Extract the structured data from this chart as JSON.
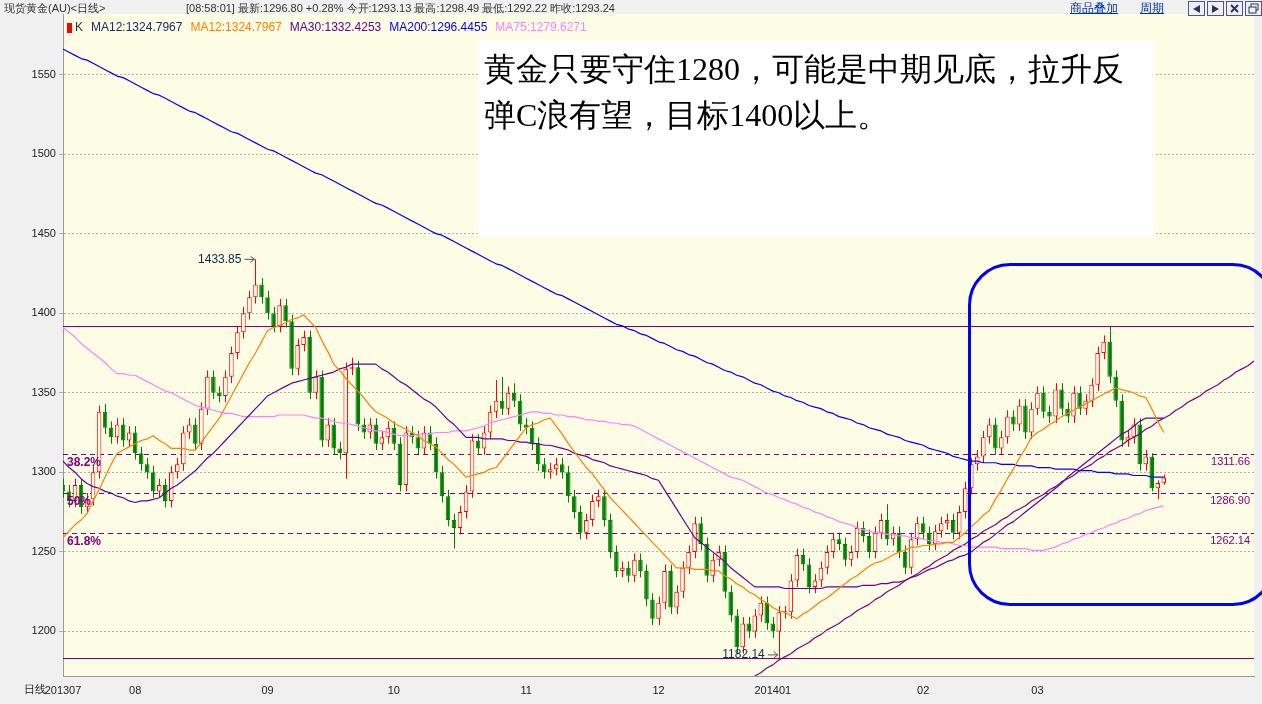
{
  "chart_data": {
    "type": "candlestick",
    "title": "现货黄金(AU)<日线>",
    "subtitle": "[08:58:01] 最新:1296.80 +0.28% 今开:1293.13 最高:1298.49 最低:1292.22 昨收:1293.24",
    "categories": [
      "201307",
      null,
      null,
      null,
      null,
      null,
      null,
      null,
      null,
      null,
      null,
      null,
      "08",
      null,
      null,
      null,
      null,
      null,
      null,
      null,
      null,
      null,
      null,
      null,
      null,
      null,
      null,
      null,
      null,
      null,
      null,
      null,
      null,
      null,
      "09",
      null,
      null,
      null,
      null,
      null,
      null,
      null,
      null,
      null,
      null,
      null,
      null,
      null,
      null,
      null,
      null,
      null,
      null,
      null,
      null,
      "10",
      null,
      null,
      null,
      null,
      null,
      null,
      null,
      null,
      null,
      null,
      null,
      null,
      null,
      null,
      null,
      null,
      null,
      null,
      null,
      null,
      null,
      "11",
      null,
      null,
      null,
      null,
      null,
      null,
      null,
      null,
      null,
      null,
      null,
      null,
      null,
      null,
      null,
      null,
      null,
      null,
      null,
      null,
      null,
      "12",
      null,
      null,
      null,
      null,
      null,
      null,
      null,
      null,
      null,
      null,
      null,
      null,
      null,
      null,
      null,
      null,
      null,
      null,
      "201401",
      null,
      null,
      null,
      null,
      null,
      null,
      null,
      null,
      null,
      null,
      null,
      null,
      null,
      null,
      null,
      null,
      null,
      null,
      null,
      null,
      null,
      null,
      null,
      null,
      "02",
      null,
      null,
      null,
      null,
      null,
      null,
      null,
      null,
      null,
      null,
      null,
      null,
      null,
      null,
      null,
      null,
      null,
      null,
      "03",
      null,
      null,
      null,
      null,
      null,
      null,
      null,
      null,
      null,
      null,
      null,
      null,
      null,
      null,
      null,
      null,
      null,
      null,
      null,
      null,
      null,
      null,
      null,
      null,
      null,
      null,
      null,
      null,
      null,
      null,
      null,
      null,
      null,
      null,
      null,
      null
    ],
    "series": [
      {
        "name": "K",
        "type": "candlestick",
        "ohlc": [
          [
            1292,
            1296,
            1284,
            1288
          ],
          [
            1288,
            1292,
            1278,
            1282
          ],
          [
            1282,
            1296,
            1278,
            1292
          ],
          [
            1292,
            1296,
            1274,
            1278
          ],
          [
            1278,
            1287,
            1274,
            1283
          ],
          [
            1283,
            1304,
            1279,
            1300
          ],
          [
            1300,
            1342,
            1296,
            1338
          ],
          [
            1338,
            1343,
            1324,
            1328
          ],
          [
            1328,
            1332,
            1318,
            1322
          ],
          [
            1322,
            1334,
            1318,
            1330
          ],
          [
            1330,
            1334,
            1316,
            1320
          ],
          [
            1320,
            1329,
            1316,
            1325
          ],
          [
            1325,
            1329,
            1308,
            1312
          ],
          [
            1312,
            1316,
            1301,
            1305
          ],
          [
            1305,
            1309,
            1296,
            1300
          ],
          [
            1300,
            1304,
            1284,
            1288
          ],
          [
            1288,
            1296,
            1284,
            1292
          ],
          [
            1292,
            1296,
            1278,
            1282
          ],
          [
            1282,
            1304,
            1278,
            1300
          ],
          [
            1300,
            1309,
            1296,
            1305
          ],
          [
            1305,
            1329,
            1301,
            1325
          ],
          [
            1325,
            1334,
            1321,
            1330
          ],
          [
            1330,
            1334,
            1314,
            1318
          ],
          [
            1318,
            1344,
            1314,
            1340
          ],
          [
            1340,
            1364,
            1336,
            1360
          ],
          [
            1360,
            1364,
            1346,
            1350
          ],
          [
            1350,
            1354,
            1344,
            1348
          ],
          [
            1348,
            1364,
            1344,
            1360
          ],
          [
            1360,
            1379,
            1356,
            1375
          ],
          [
            1375,
            1392,
            1371,
            1388
          ],
          [
            1388,
            1404,
            1384,
            1400
          ],
          [
            1400,
            1414,
            1396,
            1410
          ],
          [
            1410,
            1433.85,
            1406,
            1418
          ],
          [
            1418,
            1422,
            1406,
            1410
          ],
          [
            1410,
            1414,
            1396,
            1400
          ],
          [
            1400,
            1404,
            1388,
            1392
          ],
          [
            1392,
            1409,
            1388,
            1405
          ],
          [
            1405,
            1409,
            1391,
            1395
          ],
          [
            1395,
            1399,
            1361,
            1365
          ],
          [
            1365,
            1384,
            1361,
            1380
          ],
          [
            1380,
            1389,
            1376,
            1385
          ],
          [
            1385,
            1389,
            1346,
            1350
          ],
          [
            1350,
            1364,
            1346,
            1360
          ],
          [
            1360,
            1364,
            1316,
            1320
          ],
          [
            1320,
            1334,
            1316,
            1330
          ],
          [
            1330,
            1334,
            1311,
            1315
          ],
          [
            1315,
            1319,
            1308,
            1312
          ],
          [
            1312,
            1369,
            1296,
            1365
          ],
          [
            1365,
            1372,
            1361,
            1366
          ],
          [
            1366,
            1370,
            1326,
            1330
          ],
          [
            1330,
            1334,
            1321,
            1325
          ],
          [
            1325,
            1334,
            1321,
            1330
          ],
          [
            1330,
            1334,
            1314,
            1318
          ],
          [
            1318,
            1326,
            1314,
            1322
          ],
          [
            1322,
            1332,
            1318,
            1328
          ],
          [
            1328,
            1332,
            1314,
            1318
          ],
          [
            1318,
            1322,
            1288,
            1292
          ],
          [
            1292,
            1329,
            1288,
            1325
          ],
          [
            1325,
            1329,
            1318,
            1322
          ],
          [
            1322,
            1326,
            1311,
            1315
          ],
          [
            1315,
            1329,
            1311,
            1325
          ],
          [
            1325,
            1329,
            1314,
            1318
          ],
          [
            1318,
            1322,
            1296,
            1300
          ],
          [
            1300,
            1304,
            1281,
            1285
          ],
          [
            1285,
            1289,
            1266,
            1270
          ],
          [
            1270,
            1274,
            1252,
            1265
          ],
          [
            1265,
            1279,
            1261,
            1275
          ],
          [
            1275,
            1292,
            1271,
            1288
          ],
          [
            1288,
            1324,
            1284,
            1320
          ],
          [
            1320,
            1324,
            1311,
            1315
          ],
          [
            1315,
            1329,
            1311,
            1325
          ],
          [
            1325,
            1342,
            1321,
            1338
          ],
          [
            1338,
            1358,
            1334,
            1345
          ],
          [
            1345,
            1360,
            1336,
            1340
          ],
          [
            1340,
            1354,
            1336,
            1350
          ],
          [
            1350,
            1356,
            1341,
            1345
          ],
          [
            1345,
            1349,
            1326,
            1330
          ],
          [
            1330,
            1334,
            1324,
            1328
          ],
          [
            1328,
            1332,
            1314,
            1318
          ],
          [
            1318,
            1322,
            1301,
            1305
          ],
          [
            1305,
            1309,
            1296,
            1300
          ],
          [
            1300,
            1306,
            1296,
            1302
          ],
          [
            1302,
            1309,
            1298,
            1305
          ],
          [
            1305,
            1309,
            1296,
            1300
          ],
          [
            1300,
            1304,
            1281,
            1285
          ],
          [
            1285,
            1289,
            1271,
            1275
          ],
          [
            1275,
            1279,
            1258,
            1262
          ],
          [
            1262,
            1274,
            1258,
            1270
          ],
          [
            1270,
            1286,
            1266,
            1282
          ],
          [
            1282,
            1289,
            1278,
            1285
          ],
          [
            1285,
            1289,
            1266,
            1270
          ],
          [
            1270,
            1274,
            1246,
            1250
          ],
          [
            1250,
            1254,
            1234,
            1238
          ],
          [
            1238,
            1244,
            1234,
            1240
          ],
          [
            1240,
            1244,
            1231,
            1235
          ],
          [
            1235,
            1249,
            1231,
            1245
          ],
          [
            1245,
            1249,
            1234,
            1238
          ],
          [
            1238,
            1242,
            1216,
            1220
          ],
          [
            1220,
            1224,
            1204,
            1208
          ],
          [
            1208,
            1222,
            1204,
            1218
          ],
          [
            1218,
            1242,
            1214,
            1238
          ],
          [
            1238,
            1242,
            1211,
            1215
          ],
          [
            1215,
            1229,
            1211,
            1225
          ],
          [
            1225,
            1244,
            1221,
            1240
          ],
          [
            1240,
            1254,
            1236,
            1250
          ],
          [
            1250,
            1272,
            1246,
            1268
          ],
          [
            1268,
            1272,
            1251,
            1255
          ],
          [
            1255,
            1259,
            1231,
            1235
          ],
          [
            1235,
            1249,
            1231,
            1245
          ],
          [
            1245,
            1254,
            1241,
            1250
          ],
          [
            1250,
            1254,
            1221,
            1225
          ],
          [
            1225,
            1229,
            1206,
            1210
          ],
          [
            1210,
            1214,
            1186,
            1190
          ],
          [
            1190,
            1209,
            1186,
            1205
          ],
          [
            1205,
            1209,
            1196,
            1200
          ],
          [
            1200,
            1214,
            1196,
            1210
          ],
          [
            1210,
            1222,
            1206,
            1218
          ],
          [
            1218,
            1222,
            1201,
            1205
          ],
          [
            1205,
            1209,
            1196,
            1200
          ],
          [
            1200,
            1216,
            1182.14,
            1212
          ],
          [
            1212,
            1216,
            1208,
            1212
          ],
          [
            1212,
            1236,
            1208,
            1232
          ],
          [
            1232,
            1252,
            1228,
            1248
          ],
          [
            1248,
            1252,
            1238,
            1242
          ],
          [
            1242,
            1246,
            1224,
            1228
          ],
          [
            1228,
            1236,
            1224,
            1232
          ],
          [
            1232,
            1244,
            1228,
            1240
          ],
          [
            1240,
            1254,
            1236,
            1250
          ],
          [
            1250,
            1262,
            1246,
            1258
          ],
          [
            1258,
            1262,
            1251,
            1255
          ],
          [
            1255,
            1259,
            1241,
            1245
          ],
          [
            1245,
            1254,
            1241,
            1250
          ],
          [
            1250,
            1269,
            1246,
            1265
          ],
          [
            1265,
            1269,
            1256,
            1260
          ],
          [
            1260,
            1264,
            1246,
            1250
          ],
          [
            1250,
            1266,
            1246,
            1262
          ],
          [
            1262,
            1274,
            1258,
            1270
          ],
          [
            1270,
            1280,
            1254,
            1258
          ],
          [
            1258,
            1266,
            1254,
            1262
          ],
          [
            1262,
            1266,
            1246,
            1250
          ],
          [
            1250,
            1254,
            1236,
            1240
          ],
          [
            1240,
            1262,
            1236,
            1258
          ],
          [
            1258,
            1272,
            1254,
            1268
          ],
          [
            1268,
            1272,
            1258,
            1262
          ],
          [
            1262,
            1266,
            1251,
            1255
          ],
          [
            1255,
            1267,
            1251,
            1263
          ],
          [
            1263,
            1272,
            1259,
            1268
          ],
          [
            1268,
            1274,
            1264,
            1270
          ],
          [
            1270,
            1274,
            1258,
            1262
          ],
          [
            1262,
            1279,
            1258,
            1275
          ],
          [
            1275,
            1294,
            1271,
            1290
          ],
          [
            1290,
            1309,
            1286,
            1305
          ],
          [
            1305,
            1314,
            1301,
            1310
          ],
          [
            1310,
            1326,
            1306,
            1322
          ],
          [
            1322,
            1334,
            1318,
            1330
          ],
          [
            1330,
            1334,
            1311,
            1315
          ],
          [
            1315,
            1326,
            1311,
            1322
          ],
          [
            1322,
            1339,
            1318,
            1335
          ],
          [
            1335,
            1339,
            1326,
            1330
          ],
          [
            1330,
            1346,
            1326,
            1342
          ],
          [
            1342,
            1346,
            1321,
            1325
          ],
          [
            1325,
            1344,
            1321,
            1340
          ],
          [
            1340,
            1354,
            1336,
            1350
          ],
          [
            1350,
            1354,
            1334,
            1338
          ],
          [
            1338,
            1342,
            1331,
            1335
          ],
          [
            1335,
            1356,
            1331,
            1352
          ],
          [
            1352,
            1356,
            1336,
            1340
          ],
          [
            1340,
            1344,
            1331,
            1335
          ],
          [
            1335,
            1354,
            1331,
            1350
          ],
          [
            1350,
            1354,
            1336,
            1340
          ],
          [
            1340,
            1349,
            1336,
            1345
          ],
          [
            1345,
            1359,
            1341,
            1355
          ],
          [
            1355,
            1379,
            1351,
            1375
          ],
          [
            1375,
            1386,
            1371,
            1382
          ],
          [
            1382,
            1392,
            1356,
            1360
          ],
          [
            1360,
            1364,
            1341,
            1345
          ],
          [
            1345,
            1349,
            1316,
            1320
          ],
          [
            1320,
            1326,
            1316,
            1322
          ],
          [
            1322,
            1334,
            1318,
            1330
          ],
          [
            1330,
            1334,
            1301,
            1305
          ],
          [
            1305,
            1314,
            1301,
            1310
          ],
          [
            1310,
            1312,
            1288,
            1290
          ],
          [
            1290,
            1295,
            1283,
            1293.24
          ],
          [
            1293.13,
            1298.49,
            1292.22,
            1296.8
          ],
          null,
          null,
          null,
          null,
          null,
          null,
          null,
          null,
          null,
          null,
          null,
          null,
          null,
          null,
          null
        ]
      },
      {
        "name": "MA12:1324.7967",
        "type": "line",
        "color": "#ff8000",
        "values": [
          1259,
          1263,
          1267,
          1270,
          1274,
          1282,
          1289,
          1297,
          1305,
          1312,
          1314,
          1316,
          1318,
          1320,
          1321,
          1323,
          1320,
          1318,
          1315,
          1315,
          1315,
          1314,
          1314,
          1319,
          1324,
          1329,
          1334,
          1341,
          1348,
          1355,
          1362,
          1369,
          1375,
          1382,
          1389,
          1391,
          1392,
          1394,
          1396,
          1397,
          1399,
          1395,
          1391,
          1383,
          1376,
          1368,
          1364,
          1359,
          1355,
          1351,
          1347,
          1342,
          1338,
          1336,
          1334,
          1331,
          1329,
          1327,
          1325,
          1323,
          1320,
          1318,
          1316,
          1312,
          1308,
          1305,
          1301,
          1297,
          1298,
          1299,
          1300,
          1302,
          1303,
          1308,
          1313,
          1318,
          1323,
          1328,
          1330,
          1331,
          1333,
          1334,
          1329,
          1324,
          1318,
          1313,
          1308,
          1303,
          1299,
          1294,
          1289,
          1284,
          1280,
          1276,
          1272,
          1268,
          1264,
          1260,
          1256,
          1252,
          1248,
          1244,
          1240,
          1240,
          1240,
          1239,
          1239,
          1239,
          1238,
          1238,
          1235,
          1233,
          1230,
          1228,
          1225,
          1223,
          1220,
          1218,
          1215,
          1213,
          1212,
          1210,
          1208,
          1211,
          1213,
          1216,
          1219,
          1221,
          1224,
          1227,
          1230,
          1233,
          1235,
          1238,
          1241,
          1243,
          1244,
          1246,
          1248,
          1250,
          1251,
          1253,
          1253,
          1254,
          1254,
          1255,
          1255,
          1256,
          1256,
          1259,
          1262,
          1266,
          1269,
          1273,
          1276,
          1283,
          1289,
          1296,
          1302,
          1309,
          1315,
          1322,
          1325,
          1327,
          1330,
          1332,
          1335,
          1337,
          1339,
          1341,
          1343,
          1345,
          1347,
          1349,
          1351,
          1353,
          1352,
          1351,
          1350,
          1348,
          1347,
          1340,
          1332,
          1325,
          null,
          null,
          null,
          null,
          null,
          null,
          null,
          null,
          null,
          null,
          null,
          null,
          null,
          null,
          null
        ]
      },
      {
        "name": "MA30:1332.4253",
        "type": "line",
        "color": "#660099",
        "values": [
          1307,
          1303,
          1300,
          1296,
          1293,
          1291,
          1290,
          1288,
          1287,
          1285,
          1284,
          1282,
          1281,
          1282,
          1282,
          1283,
          1284,
          1287,
          1290,
          1292,
          1295,
          1298,
          1301,
          1305,
          1309,
          1312,
          1316,
          1320,
          1324,
          1328,
          1332,
          1336,
          1340,
          1344,
          1348,
          1350,
          1352,
          1354,
          1356,
          1357,
          1358,
          1359,
          1360,
          1361,
          1362,
          1363,
          1365,
          1366,
          1368,
          1368,
          1368,
          1368,
          1368,
          1365,
          1363,
          1360,
          1357,
          1355,
          1352,
          1349,
          1346,
          1344,
          1341,
          1337,
          1333,
          1330,
          1326,
          1322,
          1322,
          1322,
          1321,
          1321,
          1321,
          1321,
          1320,
          1320,
          1319,
          1319,
          1318,
          1318,
          1317,
          1317,
          1316,
          1315,
          1314,
          1312,
          1311,
          1310,
          1308,
          1307,
          1306,
          1304,
          1303,
          1302,
          1301,
          1300,
          1299,
          1298,
          1296,
          1295,
          1289,
          1283,
          1277,
          1271,
          1265,
          1259,
          1256,
          1253,
          1250,
          1247,
          1244,
          1240,
          1237,
          1234,
          1231,
          1228,
          1228,
          1228,
          1228,
          1228,
          1227,
          1227,
          1227,
          1227,
          1227,
          1227,
          1227,
          1228,
          1228,
          1228,
          1228,
          1228,
          1228,
          1229,
          1229,
          1229,
          1230,
          1230,
          1231,
          1231,
          1232,
          1234,
          1235,
          1237,
          1239,
          1240,
          1242,
          1244,
          1245,
          1247,
          1248,
          1250,
          1253,
          1256,
          1258,
          1261,
          1264,
          1267,
          1269,
          1272,
          1275,
          1278,
          1281,
          1284,
          1287,
          1290,
          1293,
          1297,
          1300,
          1303,
          1306,
          1309,
          1312,
          1315,
          1318,
          1321,
          1324,
          1326,
          1329,
          1332,
          1334,
          1334,
          1334,
          1334,
          null,
          null,
          null,
          null,
          null,
          null,
          null,
          null,
          null,
          null,
          null,
          null,
          null,
          null,
          null
        ]
      },
      {
        "name": "MA200:1296.4455",
        "type": "line",
        "color": "#0000ff",
        "values": [
          1566,
          1564,
          1562,
          1560,
          1559,
          1557,
          1555,
          1553,
          1551,
          1549,
          1548,
          1546,
          1544,
          1542,
          1540,
          1538,
          1537,
          1535,
          1533,
          1531,
          1529,
          1527,
          1526,
          1524,
          1522,
          1520,
          1518,
          1516,
          1514,
          1513,
          1511,
          1509,
          1507,
          1505,
          1503,
          1502,
          1500,
          1498,
          1496,
          1494,
          1492,
          1490,
          1488,
          1487,
          1485,
          1483,
          1481,
          1479,
          1477,
          1475,
          1473,
          1471,
          1469,
          1468,
          1466,
          1464,
          1462,
          1460,
          1458,
          1456,
          1454,
          1452,
          1450,
          1449,
          1447,
          1445,
          1443,
          1441,
          1439,
          1437,
          1435,
          1433,
          1431,
          1430,
          1428,
          1426,
          1424,
          1422,
          1420,
          1418,
          1416,
          1414,
          1412,
          1411,
          1409,
          1407,
          1405,
          1403,
          1401,
          1399,
          1397,
          1395,
          1393,
          1392,
          1390,
          1389,
          1387,
          1386,
          1384,
          1382,
          1381,
          1379,
          1377,
          1376,
          1374,
          1373,
          1371,
          1369,
          1368,
          1366,
          1364,
          1363,
          1361,
          1360,
          1358,
          1356,
          1355,
          1353,
          1351,
          1350,
          1348,
          1347,
          1345,
          1344,
          1342,
          1341,
          1340,
          1338,
          1337,
          1335,
          1334,
          1333,
          1331,
          1330,
          1328,
          1327,
          1326,
          1324,
          1323,
          1322,
          1320,
          1319,
          1318,
          1317,
          1315,
          1314,
          1313,
          1312,
          1310,
          1309,
          1308,
          1307,
          1307,
          1306,
          1306,
          1306,
          1305,
          1305,
          1305,
          1304,
          1304,
          1304,
          1303,
          1303,
          1303,
          1302,
          1302,
          1302,
          1302,
          1301,
          1301,
          1301,
          1300,
          1300,
          1300,
          1299,
          1299,
          1299,
          1298,
          1298,
          1298,
          1297,
          1297,
          1297,
          null,
          null,
          null,
          null,
          null,
          null,
          null,
          null,
          null,
          null,
          null,
          null,
          null,
          null,
          null
        ]
      },
      {
        "name": "MA75:1279.6271",
        "type": "line",
        "color": "#ff80ff",
        "values": [
          1391,
          1388,
          1385,
          1381,
          1378,
          1375,
          1372,
          1369,
          1365,
          1362,
          1362,
          1361,
          1361,
          1359,
          1357,
          1355,
          1353,
          1351,
          1350,
          1348,
          1346,
          1344,
          1342,
          1341,
          1340,
          1339,
          1338,
          1337,
          1337,
          1336,
          1335,
          1335,
          1335,
          1335,
          1335,
          1335,
          1336,
          1336,
          1336,
          1336,
          1336,
          1335,
          1334,
          1334,
          1333,
          1332,
          1331,
          1331,
          1330,
          1329,
          1328,
          1327,
          1326,
          1326,
          1325,
          1324,
          1323,
          1323,
          1323,
          1324,
          1324,
          1324,
          1325,
          1325,
          1325,
          1326,
          1326,
          1326,
          1327,
          1328,
          1329,
          1331,
          1332,
          1333,
          1334,
          1335,
          1336,
          1337,
          1338,
          1338,
          1337,
          1337,
          1336,
          1336,
          1335,
          1335,
          1334,
          1333,
          1333,
          1332,
          1332,
          1331,
          1331,
          1330,
          1330,
          1329,
          1327,
          1325,
          1323,
          1321,
          1319,
          1317,
          1315,
          1313,
          1311,
          1309,
          1307,
          1305,
          1303,
          1301,
          1299,
          1297,
          1296,
          1295,
          1293,
          1291,
          1289,
          1287,
          1286,
          1284,
          1283,
          1281,
          1280,
          1278,
          1277,
          1275,
          1274,
          1272,
          1271,
          1269,
          1268,
          1267,
          1265,
          1264,
          1263,
          1262,
          1262,
          1261,
          1261,
          1260,
          1260,
          1259,
          1259,
          1258,
          1257,
          1257,
          1256,
          1256,
          1255,
          1254,
          1254,
          1253,
          1253,
          1253,
          1253,
          1253,
          1252,
          1252,
          1252,
          1252,
          1252,
          1251,
          1251,
          1251,
          1252,
          1253,
          1255,
          1256,
          1258,
          1259,
          1261,
          1262,
          1264,
          1265,
          1267,
          1268,
          1270,
          1271,
          1273,
          1274,
          1276,
          1277,
          1278,
          1279,
          null,
          null,
          null,
          null,
          null,
          null,
          null,
          null,
          null,
          null,
          null,
          null,
          null,
          null,
          null
        ]
      },
      {
        "type": "line",
        "color": "#800080",
        "values": [
          null,
          null,
          null,
          null,
          null,
          null,
          null,
          null,
          null,
          null,
          null,
          null,
          null,
          null,
          null,
          null,
          null,
          null,
          null,
          null,
          null,
          null,
          null,
          null,
          null,
          null,
          null,
          null,
          null,
          null,
          null,
          null,
          null,
          null,
          null,
          null,
          null,
          null,
          null,
          null,
          null,
          null,
          null,
          null,
          null,
          null,
          null,
          null,
          null,
          null,
          null,
          null,
          null,
          null,
          null,
          null,
          null,
          null,
          null,
          null,
          null,
          null,
          null,
          null,
          null,
          null,
          null,
          null,
          null,
          null,
          null,
          null,
          null,
          null,
          null,
          null,
          null,
          null,
          null,
          null,
          null,
          null,
          null,
          null,
          null,
          null,
          null,
          null,
          null,
          null,
          null,
          null,
          null,
          null,
          null,
          null,
          null,
          null,
          null,
          null,
          null,
          null,
          null,
          null,
          null,
          null,
          null,
          null,
          null,
          null,
          null,
          null,
          null,
          null,
          null,
          1172,
          1174,
          1177,
          1179,
          1182,
          1184,
          1186,
          1189,
          1191,
          1193,
          1196,
          1198,
          1201,
          1203,
          1205,
          1208,
          1210,
          1213,
          1215,
          1217,
          1220,
          1222,
          1225,
          1227,
          1229,
          1232,
          1234,
          1236,
          1239,
          1241,
          1244,
          1246,
          1248,
          1251,
          1253,
          1255,
          1258,
          1260,
          1263,
          1265,
          1267,
          1270,
          1272,
          1275,
          1277,
          1279,
          1282,
          1284,
          1286,
          1289,
          1291,
          1294,
          1296,
          1298,
          1301,
          1303,
          1305,
          1308,
          1310,
          1313,
          1315,
          1317,
          1320,
          1322,
          1324,
          1327,
          1329,
          1332,
          1334,
          1336,
          1339,
          1341,
          1344,
          1346,
          1348,
          1351,
          1353,
          1355,
          1358,
          1360,
          1363,
          1365,
          1367,
          1370
        ]
      }
    ],
    "ylim": [
      1172,
      1588
    ],
    "yticks": [
      1200,
      1250,
      1300,
      1350,
      1400,
      1450,
      1500,
      1550
    ],
    "grid": "y",
    "legend": "top left",
    "ref_lines": [
      {
        "axis": "y",
        "value": 1392,
        "color": "#800080",
        "line_style": "solid"
      },
      {
        "axis": "y",
        "value": 1311.66,
        "label": "1311.66",
        "color": "#800080",
        "line_style": "dashed"
      },
      {
        "axis": "y",
        "value": 1286.9,
        "label": "1286.90",
        "color": "#800080",
        "line_style": "dashed"
      },
      {
        "axis": "y",
        "value": 1262.14,
        "label": "1262.14",
        "color": "#800080",
        "line_style": "dashed"
      },
      {
        "axis": "y",
        "value": 1183,
        "color": "#800080",
        "line_style": "solid"
      }
    ],
    "annotations": [
      "黄金只要守住1280，可能是中期见底，拉升反弹C浪有望，目标1400以上。",
      "1433.85",
      "1182.14",
      {
        "text": "38.2%",
        "y": 1311.66
      },
      {
        "text": "50%",
        "y": 1286.9
      },
      {
        "text": "61.8%",
        "y": 1262.14
      },
      "MA12:1324.7967",
      "日线",
      "商品叠加",
      "周期"
    ]
  }
}
